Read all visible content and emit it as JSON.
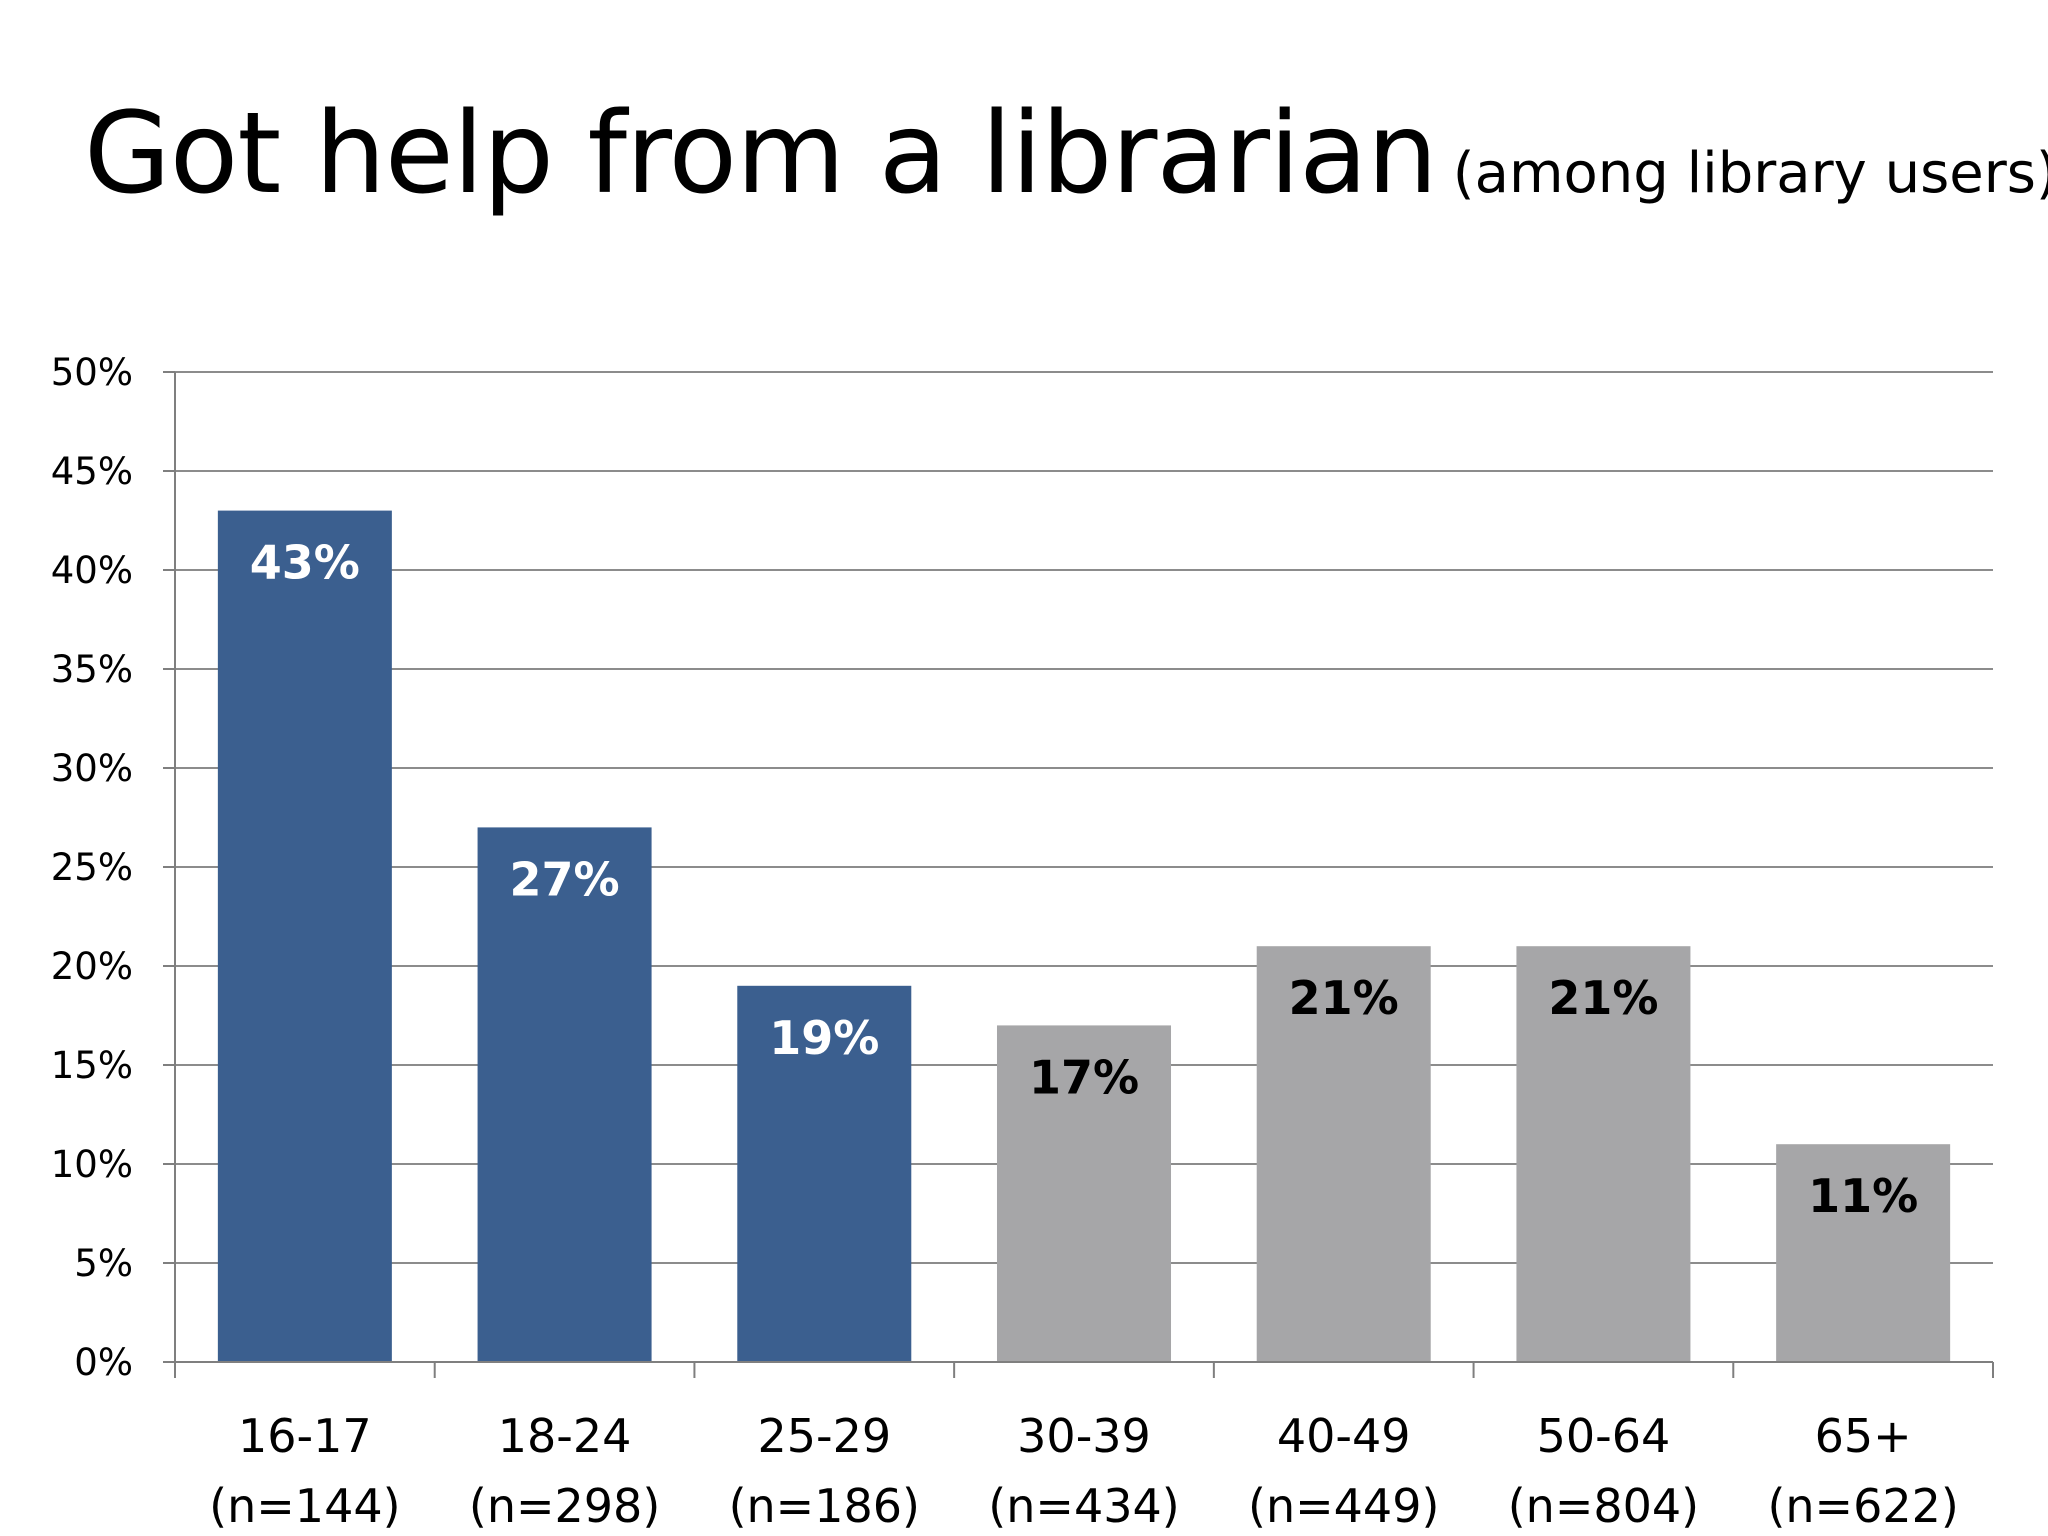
{
  "slide": {
    "title": "Got help from a librarian",
    "subtitle": "(among library users)"
  },
  "colors": {
    "highlight": "#3b5f8f",
    "muted": "#a6a6a8",
    "label_on_highlight": "#ffffff",
    "label_on_muted": "#000000",
    "gridline": "#8c8c8c",
    "axis": "#7f7f7f"
  },
  "chart_data": {
    "type": "bar",
    "title": "Got help from a librarian",
    "subtitle": "(among library users)",
    "xlabel": "",
    "ylabel": "",
    "ylim": [
      0,
      50
    ],
    "ytick_step": 5,
    "ytick_labels": [
      "0%",
      "5%",
      "10%",
      "15%",
      "20%",
      "25%",
      "30%",
      "35%",
      "40%",
      "45%",
      "50%"
    ],
    "grid": true,
    "legend": "none",
    "categories": [
      "16-17",
      "18-24",
      "25-29",
      "30-39",
      "40-49",
      "50-64",
      "65+"
    ],
    "sample_sizes": [
      "(n=144)",
      "(n=298)",
      "(n=186)",
      "(n=434)",
      "(n=449)",
      "(n=804)",
      "(n=622)"
    ],
    "values": [
      43,
      27,
      19,
      17,
      21,
      21,
      11
    ],
    "data_labels": [
      "43%",
      "27%",
      "19%",
      "17%",
      "21%",
      "21%",
      "11%"
    ],
    "highlighted": [
      true,
      true,
      true,
      false,
      false,
      false,
      false
    ]
  }
}
